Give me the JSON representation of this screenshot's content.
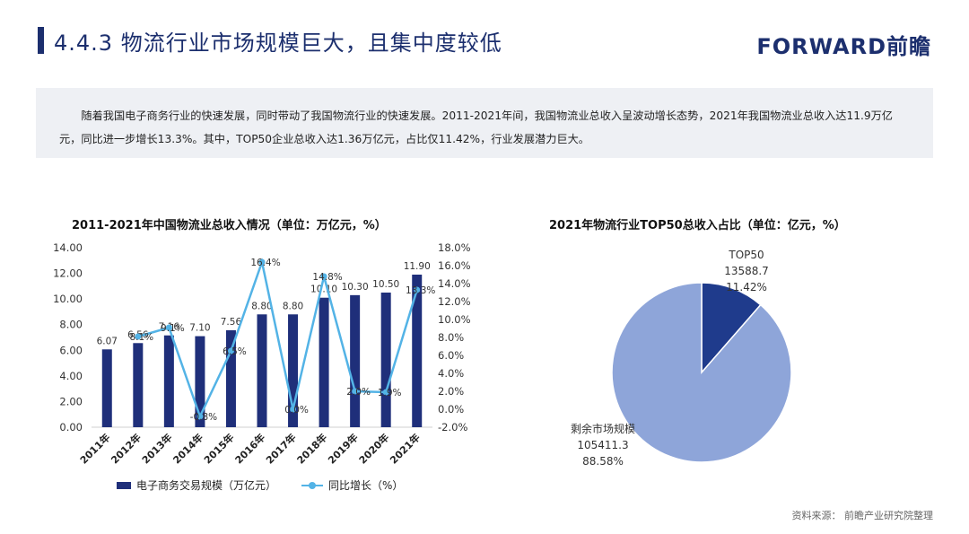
{
  "header": {
    "title": "4.4.3 物流行业市场规模巨大，且集中度较低",
    "brand": "FORWARD前瞻"
  },
  "summary": "随着我国电子商务行业的快速发展，同时带动了我国物流行业的快速发展。2011-2021年间，我国物流业总收入呈波动增长态势，2021年我国物流业总收入达11.9万亿元，同比进一步增长13.3%。其中，TOP50企业总收入达1.36万亿元，占比仅11.42%，行业发展潜力巨大。",
  "source": "资料来源： 前瞻产业研究院整理",
  "chart_data": [
    {
      "type": "bar",
      "title": "2011-2021年中国物流业总收入情况（单位：万亿元，%）",
      "categories": [
        "2011年",
        "2012年",
        "2013年",
        "2014年",
        "2015年",
        "2016年",
        "2017年",
        "2018年",
        "2019年",
        "2020年",
        "2021年"
      ],
      "series": [
        {
          "name": "电子商务交易规模（万亿元）",
          "type": "bar",
          "axis": "left",
          "values": [
            6.07,
            6.56,
            7.16,
            7.1,
            7.56,
            8.8,
            8.8,
            10.1,
            10.3,
            10.5,
            11.9
          ],
          "labels": [
            "6.07",
            "6.56",
            "7.16",
            "7.10",
            "7.56",
            "8.80",
            "8.80",
            "10.10",
            "10.30",
            "10.50",
            "11.90"
          ]
        },
        {
          "name": "同比增长（%）",
          "type": "line",
          "axis": "right",
          "values": [
            null,
            8.1,
            9.1,
            -0.8,
            6.5,
            16.4,
            0.0,
            14.8,
            2.0,
            1.9,
            13.3
          ],
          "labels": [
            "",
            "8.1%",
            "9.1%",
            "-0.8%",
            "6.5%",
            "16.4%",
            "0.0%",
            "14.8%",
            "2.0%",
            "1.9%",
            "13.3%"
          ]
        }
      ],
      "y_left": {
        "range": [
          0,
          14
        ],
        "ticks": [
          "0.00",
          "2.00",
          "4.00",
          "6.00",
          "8.00",
          "10.00",
          "12.00",
          "14.00"
        ]
      },
      "y_right": {
        "range": [
          -2,
          18
        ],
        "ticks": [
          "-2.0%",
          "0.0%",
          "2.0%",
          "4.0%",
          "6.0%",
          "8.0%",
          "10.0%",
          "12.0%",
          "14.0%",
          "16.0%",
          "18.0%"
        ]
      },
      "grid": false,
      "legend": "bottom",
      "colors": {
        "bar": "#1f2f7a",
        "line": "#53b3e6"
      }
    },
    {
      "type": "pie",
      "title": "2021年物流行业TOP50总收入占比（单位：亿元，%）",
      "slices": [
        {
          "name": "TOP50",
          "value": 13588.7,
          "value_label": "13588.7",
          "percent_label": "11.42%",
          "color": "#1f3b8c"
        },
        {
          "name": "剩余市场规模",
          "value": 105411.3,
          "value_label": "105411.3",
          "percent_label": "88.58%",
          "color": "#8ea5d9"
        }
      ]
    }
  ]
}
